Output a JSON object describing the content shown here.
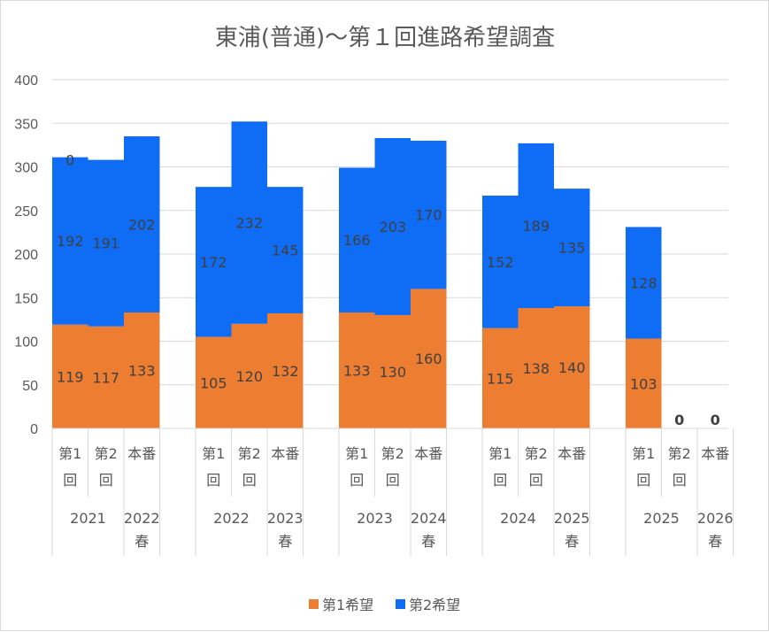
{
  "chart_data": {
    "type": "bar",
    "stacked": true,
    "title": "東浦(普通)～第１回進路希望調査",
    "xlabel": "",
    "ylabel": "",
    "ylim": [
      0,
      400
    ],
    "yticks": [
      0,
      50,
      100,
      150,
      200,
      250,
      300,
      350,
      400
    ],
    "grid": true,
    "legend_position": "bottom",
    "groups": [
      {
        "label": "2021",
        "categories": [
          "第1回",
          "第2回"
        ]
      },
      {
        "label": "2022春",
        "categories": [
          "本番"
        ]
      },
      {
        "label": "2022",
        "categories": [
          "第1回",
          "第2回"
        ]
      },
      {
        "label": "2023春",
        "categories": [
          "本番"
        ]
      },
      {
        "label": "2023",
        "categories": [
          "第1回",
          "第2回"
        ]
      },
      {
        "label": "2024春",
        "categories": [
          "本番"
        ]
      },
      {
        "label": "2024",
        "categories": [
          "第1回",
          "第2回"
        ]
      },
      {
        "label": "2025春",
        "categories": [
          "本番"
        ]
      },
      {
        "label": "2025",
        "categories": [
          "第1回",
          "第2回"
        ]
      },
      {
        "label": "2026春",
        "categories": [
          "本番"
        ]
      }
    ],
    "series": [
      {
        "name": "第1希望",
        "color": "#ED7D31",
        "values": [
          119,
          117,
          133,
          105,
          120,
          132,
          133,
          130,
          160,
          115,
          138,
          140,
          103,
          0,
          0
        ]
      },
      {
        "name": "第2希望",
        "color": "#0F6CF5",
        "values": [
          192,
          191,
          202,
          172,
          232,
          145,
          166,
          203,
          170,
          152,
          189,
          135,
          128,
          0,
          0
        ]
      }
    ],
    "extra_labels": [
      {
        "index": 0,
        "text": "0"
      }
    ]
  }
}
